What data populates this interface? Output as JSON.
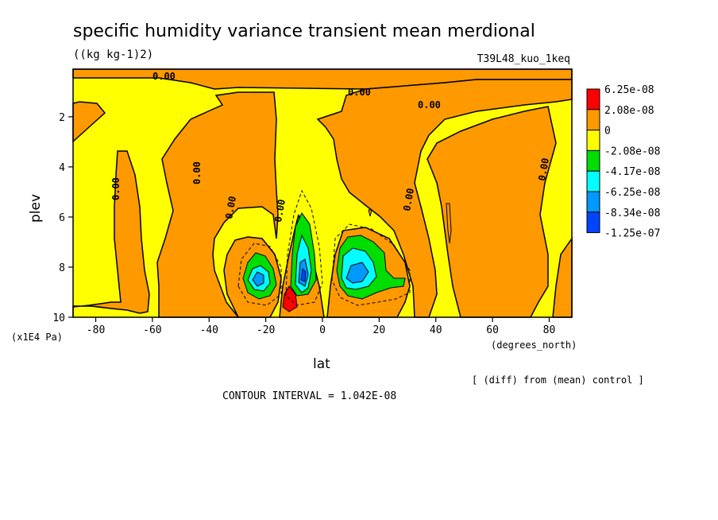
{
  "chart_data": {
    "type": "heatmap",
    "title": "specific humidity variance transient mean merdional",
    "units": "((kg kg-1)2)",
    "run_label": "T39L48_kuo_1keq",
    "xlabel": "lat",
    "ylabel": "plev",
    "x_unit": "(degrees_north)",
    "y_unit": "(x1E4 Pa)",
    "x_ticks": [
      "-80",
      "-60",
      "-40",
      "-20",
      "0",
      "20",
      "40",
      "60",
      "80"
    ],
    "y_ticks": [
      "2",
      "4",
      "6",
      "8",
      "10"
    ],
    "xlim": [
      -88,
      88
    ],
    "ylim": [
      10,
      0.1
    ],
    "contour_label": "0.00",
    "colorbar": {
      "labels": [
        "6.25e-08",
        "2.08e-08",
        "0",
        "-2.08e-08",
        "-4.17e-08",
        "-6.25e-08",
        "-8.34e-08",
        "-1.25e-07"
      ],
      "colors": [
        "#ff0000",
        "#ff9900",
        "#ffff00",
        "#00dd00",
        "#00ffff",
        "#0099ff",
        "#0044ff"
      ]
    },
    "note": "[ (diff) from (mean) control ]",
    "contour_interval_text": "CONTOUR INTERVAL = 1.042E-08"
  }
}
